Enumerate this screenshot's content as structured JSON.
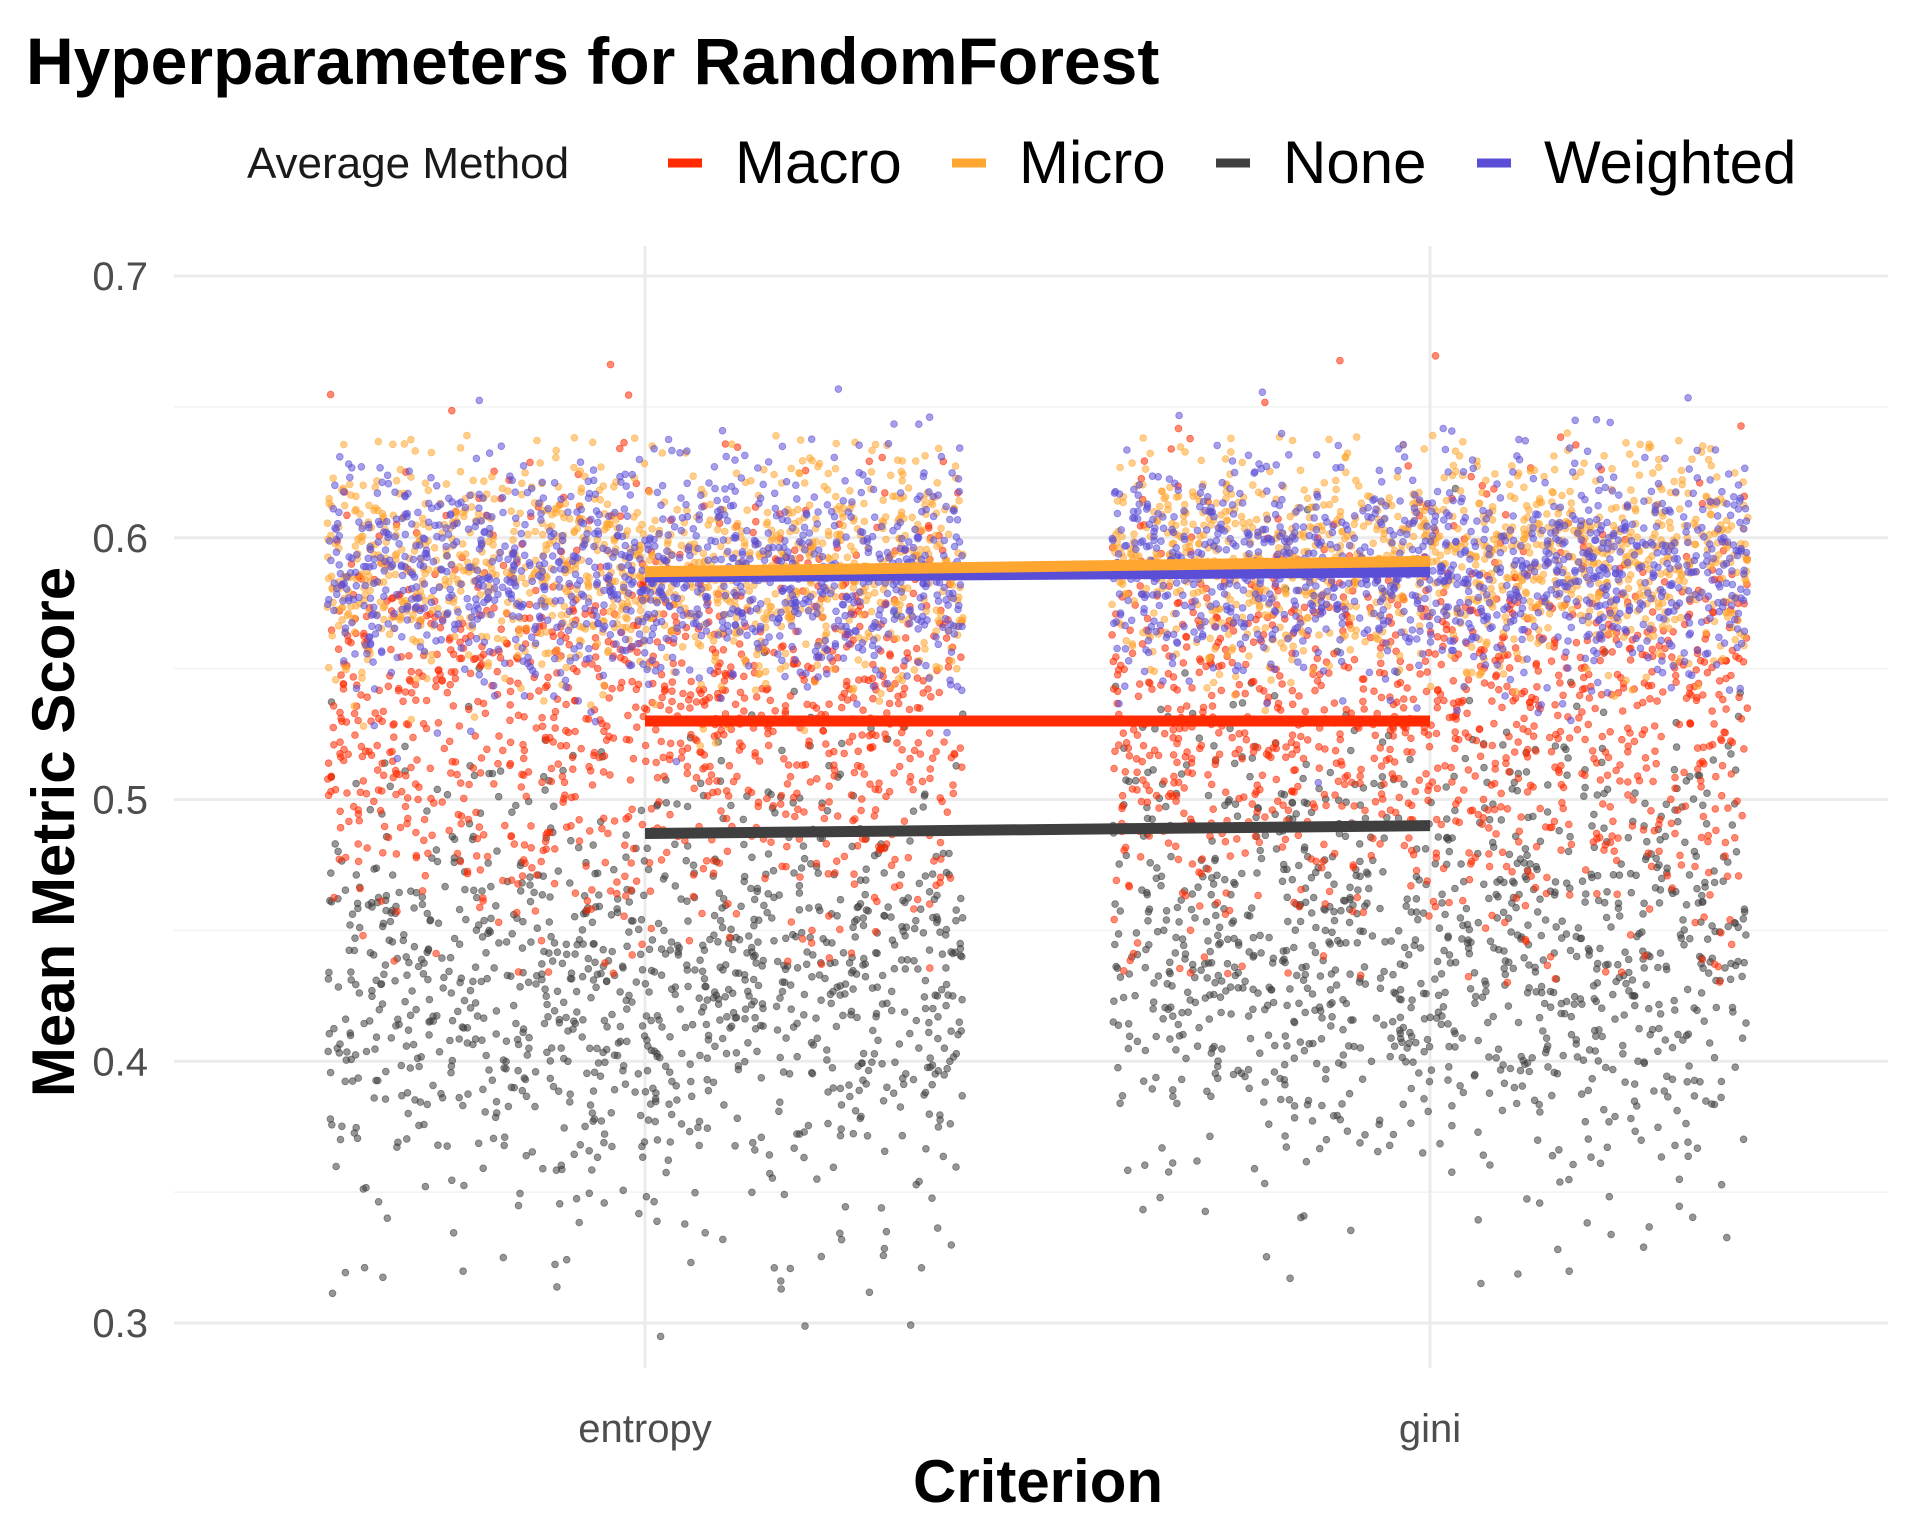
{
  "chart_data": {
    "type": "scatter",
    "title": "Hyperparameters for RandomForest",
    "xlabel": "Criterion",
    "ylabel": "Mean Metric Score",
    "categories": [
      "entropy",
      "gini"
    ],
    "ylim": [
      0.28,
      0.71
    ],
    "yticks": [
      "0.3",
      "0.4",
      "0.5",
      "0.6",
      "0.7"
    ],
    "legend": {
      "title": "Average Method",
      "placement": "top"
    },
    "grid": true,
    "points_jittered": true,
    "series": [
      {
        "name": "Macro",
        "color": "#ff2a00",
        "means": [
          0.53,
          0.53
        ],
        "spread": {
          "center": [
            0.532,
            0.53
          ],
          "sd": 0.04,
          "min": [
            0.43,
            0.43
          ],
          "max": [
            0.683,
            0.682
          ]
        }
      },
      {
        "name": "Micro",
        "color": "#ffa630",
        "means": [
          0.587,
          0.591
        ],
        "spread": {
          "center": [
            0.59,
            0.592
          ],
          "sd": 0.021,
          "min": [
            0.52,
            0.53
          ],
          "max": [
            0.64,
            0.64
          ]
        }
      },
      {
        "name": "None",
        "color": "#3f3f3f",
        "means": [
          0.487,
          0.49
        ],
        "spread": {
          "center": [
            0.43,
            0.44
          ],
          "sd": 0.045,
          "min": [
            0.294,
            0.315
          ],
          "max": [
            0.62,
            0.62
          ]
        }
      },
      {
        "name": "Weighted",
        "color": "#5b4ed6",
        "means": [
          0.585,
          0.587
        ],
        "spread": {
          "center": [
            0.585,
            0.588
          ],
          "sd": 0.021,
          "min": [
            0.5,
            0.5
          ],
          "max": [
            0.657,
            0.657
          ]
        }
      }
    ]
  }
}
